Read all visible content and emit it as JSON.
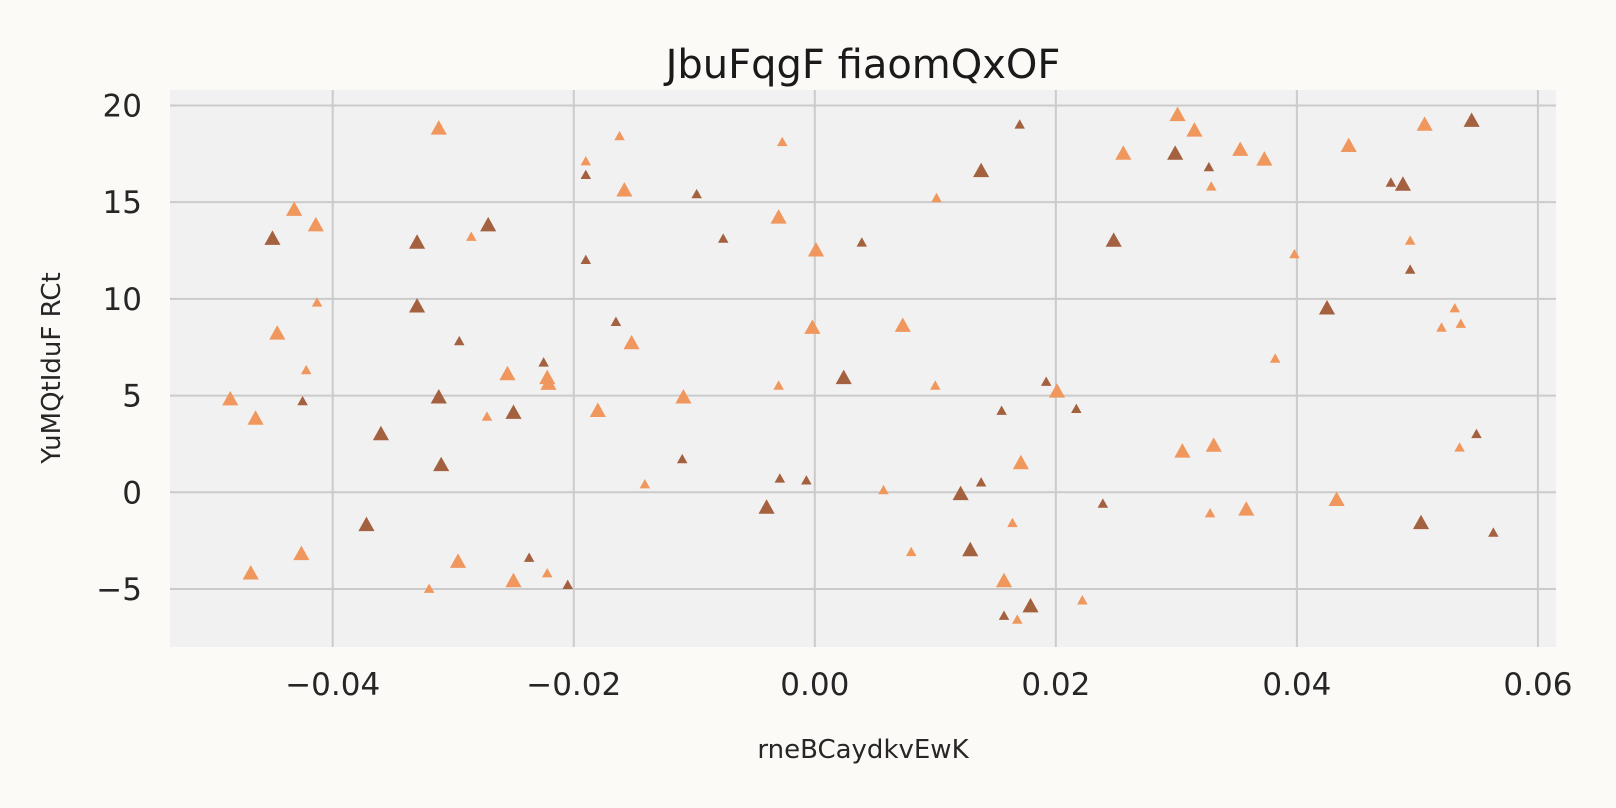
{
  "chart_data": {
    "type": "scatter",
    "title": "JbuFqgF fiaomQxOF",
    "xlabel": "rneBCaydkvEwK",
    "ylabel": "YuMQtIduF RCt",
    "xlim": [
      -0.0535,
      0.0615
    ],
    "ylim": [
      -8.0,
      20.8
    ],
    "xticks": [
      -0.04,
      -0.02,
      0.0,
      0.02,
      0.04,
      0.06
    ],
    "xtick_labels": [
      "−0.04",
      "−0.02",
      "0.00",
      "0.02",
      "0.04",
      "0.06"
    ],
    "yticks": [
      -5,
      0,
      5,
      10,
      15,
      20
    ],
    "ytick_labels": [
      "−5",
      "0",
      "5",
      "10",
      "15",
      "20"
    ],
    "grid": true,
    "marker": "triangle-up",
    "colors": {
      "background": "#f2f1f1",
      "orange": "#f0975e",
      "brown": "#a3613f"
    },
    "points": [
      {
        "x": -0.0485,
        "y": 4.8,
        "c": "orange",
        "s": 1.0
      },
      {
        "x": -0.0464,
        "y": 3.8,
        "c": "orange",
        "s": 1.0
      },
      {
        "x": -0.0468,
        "y": -4.2,
        "c": "orange",
        "s": 1.0
      },
      {
        "x": -0.0432,
        "y": 14.6,
        "c": "orange",
        "s": 1.0
      },
      {
        "x": -0.0446,
        "y": 8.2,
        "c": "orange",
        "s": 1.0
      },
      {
        "x": -0.0426,
        "y": -3.2,
        "c": "orange",
        "s": 1.0
      },
      {
        "x": -0.0414,
        "y": 13.8,
        "c": "orange",
        "s": 1.0
      },
      {
        "x": -0.0422,
        "y": 6.3,
        "c": "orange",
        "s": 0.65
      },
      {
        "x": -0.0413,
        "y": 9.8,
        "c": "orange",
        "s": 0.65
      },
      {
        "x": -0.045,
        "y": 13.1,
        "c": "brown",
        "s": 1.0
      },
      {
        "x": -0.0425,
        "y": 4.7,
        "c": "brown",
        "s": 0.65
      },
      {
        "x": -0.0372,
        "y": -1.7,
        "c": "brown",
        "s": 1.0
      },
      {
        "x": -0.036,
        "y": 3.0,
        "c": "brown",
        "s": 1.0
      },
      {
        "x": -0.033,
        "y": 12.9,
        "c": "brown",
        "s": 1.0
      },
      {
        "x": -0.033,
        "y": 9.6,
        "c": "brown",
        "s": 1.0
      },
      {
        "x": -0.0312,
        "y": 4.9,
        "c": "brown",
        "s": 1.0
      },
      {
        "x": -0.031,
        "y": 1.4,
        "c": "brown",
        "s": 1.0
      },
      {
        "x": -0.0312,
        "y": 18.8,
        "c": "orange",
        "s": 1.0
      },
      {
        "x": -0.032,
        "y": -5.0,
        "c": "orange",
        "s": 0.65
      },
      {
        "x": -0.0295,
        "y": 7.8,
        "c": "brown",
        "s": 0.65
      },
      {
        "x": -0.0285,
        "y": 13.2,
        "c": "orange",
        "s": 0.65
      },
      {
        "x": -0.0296,
        "y": -3.6,
        "c": "orange",
        "s": 1.0
      },
      {
        "x": -0.0271,
        "y": 13.8,
        "c": "brown",
        "s": 1.0
      },
      {
        "x": -0.0272,
        "y": 3.9,
        "c": "orange",
        "s": 0.65
      },
      {
        "x": -0.0255,
        "y": 6.1,
        "c": "orange",
        "s": 1.0
      },
      {
        "x": -0.025,
        "y": 4.1,
        "c": "brown",
        "s": 1.0
      },
      {
        "x": -0.025,
        "y": -4.6,
        "c": "orange",
        "s": 1.0
      },
      {
        "x": -0.0237,
        "y": -3.4,
        "c": "brown",
        "s": 0.65
      },
      {
        "x": -0.0225,
        "y": 6.7,
        "c": "brown",
        "s": 0.65
      },
      {
        "x": -0.0222,
        "y": 5.9,
        "c": "orange",
        "s": 1.0
      },
      {
        "x": -0.0221,
        "y": 5.6,
        "c": "orange",
        "s": 1.0
      },
      {
        "x": -0.0222,
        "y": -4.2,
        "c": "orange",
        "s": 0.65
      },
      {
        "x": -0.0205,
        "y": -4.8,
        "c": "brown",
        "s": 0.65
      },
      {
        "x": -0.019,
        "y": 17.1,
        "c": "orange",
        "s": 0.65
      },
      {
        "x": -0.019,
        "y": 16.4,
        "c": "brown",
        "s": 0.65
      },
      {
        "x": -0.019,
        "y": 12.0,
        "c": "brown",
        "s": 0.65
      },
      {
        "x": -0.018,
        "y": 4.2,
        "c": "orange",
        "s": 1.0
      },
      {
        "x": -0.0162,
        "y": 18.4,
        "c": "orange",
        "s": 0.65
      },
      {
        "x": -0.0158,
        "y": 15.6,
        "c": "orange",
        "s": 1.0
      },
      {
        "x": -0.0165,
        "y": 8.8,
        "c": "brown",
        "s": 0.65
      },
      {
        "x": -0.0152,
        "y": 7.7,
        "c": "orange",
        "s": 1.0
      },
      {
        "x": -0.0141,
        "y": 0.4,
        "c": "orange",
        "s": 0.65
      },
      {
        "x": -0.0109,
        "y": 4.9,
        "c": "orange",
        "s": 1.0
      },
      {
        "x": -0.011,
        "y": 1.7,
        "c": "brown",
        "s": 0.65
      },
      {
        "x": -0.0098,
        "y": 15.4,
        "c": "brown",
        "s": 0.65
      },
      {
        "x": -0.0076,
        "y": 13.1,
        "c": "brown",
        "s": 0.65
      },
      {
        "x": -0.004,
        "y": -0.8,
        "c": "brown",
        "s": 1.0
      },
      {
        "x": -0.003,
        "y": 14.2,
        "c": "orange",
        "s": 1.0
      },
      {
        "x": -0.0027,
        "y": 18.1,
        "c": "orange",
        "s": 0.65
      },
      {
        "x": -0.003,
        "y": 5.5,
        "c": "orange",
        "s": 0.65
      },
      {
        "x": -0.0029,
        "y": 0.7,
        "c": "brown",
        "s": 0.65
      },
      {
        "x": -0.0007,
        "y": 0.6,
        "c": "brown",
        "s": 0.65
      },
      {
        "x": -0.0002,
        "y": 8.5,
        "c": "orange",
        "s": 1.0
      },
      {
        "x": 0.0001,
        "y": 12.5,
        "c": "orange",
        "s": 1.0
      },
      {
        "x": 0.0024,
        "y": 5.9,
        "c": "brown",
        "s": 1.0
      },
      {
        "x": 0.0039,
        "y": 12.9,
        "c": "brown",
        "s": 0.65
      },
      {
        "x": 0.0057,
        "y": 0.1,
        "c": "orange",
        "s": 0.65
      },
      {
        "x": 0.0073,
        "y": 8.6,
        "c": "orange",
        "s": 1.0
      },
      {
        "x": 0.008,
        "y": -3.1,
        "c": "orange",
        "s": 0.65
      },
      {
        "x": 0.0101,
        "y": 15.2,
        "c": "orange",
        "s": 0.65
      },
      {
        "x": 0.01,
        "y": 5.5,
        "c": "orange",
        "s": 0.65
      },
      {
        "x": 0.0121,
        "y": -0.1,
        "c": "brown",
        "s": 1.0
      },
      {
        "x": 0.0129,
        "y": -3.0,
        "c": "brown",
        "s": 1.0
      },
      {
        "x": 0.0138,
        "y": 16.6,
        "c": "brown",
        "s": 1.0
      },
      {
        "x": 0.0138,
        "y": 0.5,
        "c": "brown",
        "s": 0.65
      },
      {
        "x": 0.0155,
        "y": 4.2,
        "c": "brown",
        "s": 0.65
      },
      {
        "x": 0.0157,
        "y": -4.6,
        "c": "orange",
        "s": 1.0
      },
      {
        "x": 0.0157,
        "y": -6.4,
        "c": "brown",
        "s": 0.65
      },
      {
        "x": 0.0164,
        "y": -1.6,
        "c": "orange",
        "s": 0.65
      },
      {
        "x": 0.0168,
        "y": -6.6,
        "c": "orange",
        "s": 0.65
      },
      {
        "x": 0.017,
        "y": 19.0,
        "c": "brown",
        "s": 0.65
      },
      {
        "x": 0.0171,
        "y": 1.5,
        "c": "orange",
        "s": 1.0
      },
      {
        "x": 0.0179,
        "y": -5.9,
        "c": "brown",
        "s": 1.0
      },
      {
        "x": 0.0192,
        "y": 5.7,
        "c": "brown",
        "s": 0.65
      },
      {
        "x": 0.0201,
        "y": 5.2,
        "c": "orange",
        "s": 1.0
      },
      {
        "x": 0.0217,
        "y": 4.3,
        "c": "brown",
        "s": 0.65
      },
      {
        "x": 0.0222,
        "y": -5.6,
        "c": "orange",
        "s": 0.65
      },
      {
        "x": 0.0239,
        "y": -0.6,
        "c": "brown",
        "s": 0.65
      },
      {
        "x": 0.0248,
        "y": 13.0,
        "c": "brown",
        "s": 1.0
      },
      {
        "x": 0.0256,
        "y": 17.5,
        "c": "orange",
        "s": 1.0
      },
      {
        "x": 0.0299,
        "y": 17.5,
        "c": "brown",
        "s": 1.0
      },
      {
        "x": 0.0301,
        "y": 19.5,
        "c": "orange",
        "s": 1.0
      },
      {
        "x": 0.0305,
        "y": 2.1,
        "c": "orange",
        "s": 1.0
      },
      {
        "x": 0.0315,
        "y": 18.7,
        "c": "orange",
        "s": 1.0
      },
      {
        "x": 0.0327,
        "y": 16.8,
        "c": "brown",
        "s": 0.65
      },
      {
        "x": 0.0329,
        "y": 15.8,
        "c": "orange",
        "s": 0.65
      },
      {
        "x": 0.0328,
        "y": -1.1,
        "c": "orange",
        "s": 0.65
      },
      {
        "x": 0.0331,
        "y": 2.4,
        "c": "orange",
        "s": 1.0
      },
      {
        "x": 0.0353,
        "y": 17.7,
        "c": "orange",
        "s": 1.0
      },
      {
        "x": 0.0358,
        "y": -0.9,
        "c": "orange",
        "s": 1.0
      },
      {
        "x": 0.0373,
        "y": 17.2,
        "c": "orange",
        "s": 1.0
      },
      {
        "x": 0.0382,
        "y": 6.9,
        "c": "orange",
        "s": 0.65
      },
      {
        "x": 0.0398,
        "y": 12.3,
        "c": "orange",
        "s": 0.65
      },
      {
        "x": 0.0425,
        "y": 9.5,
        "c": "brown",
        "s": 1.0
      },
      {
        "x": 0.0433,
        "y": -0.4,
        "c": "orange",
        "s": 1.0
      },
      {
        "x": 0.0443,
        "y": 17.9,
        "c": "orange",
        "s": 1.0
      },
      {
        "x": 0.0478,
        "y": 16.0,
        "c": "brown",
        "s": 0.65
      },
      {
        "x": 0.0488,
        "y": 15.9,
        "c": "brown",
        "s": 1.0
      },
      {
        "x": 0.0494,
        "y": 13.0,
        "c": "orange",
        "s": 0.65
      },
      {
        "x": 0.0494,
        "y": 11.5,
        "c": "brown",
        "s": 0.65
      },
      {
        "x": 0.0503,
        "y": -1.6,
        "c": "brown",
        "s": 1.0
      },
      {
        "x": 0.0506,
        "y": 19.0,
        "c": "orange",
        "s": 1.0
      },
      {
        "x": 0.052,
        "y": 8.5,
        "c": "orange",
        "s": 0.65
      },
      {
        "x": 0.0531,
        "y": 9.5,
        "c": "orange",
        "s": 0.65
      },
      {
        "x": 0.0536,
        "y": 8.7,
        "c": "orange",
        "s": 0.65
      },
      {
        "x": 0.0535,
        "y": 2.3,
        "c": "orange",
        "s": 0.65
      },
      {
        "x": 0.0545,
        "y": 19.2,
        "c": "brown",
        "s": 1.0
      },
      {
        "x": 0.0549,
        "y": 3.0,
        "c": "brown",
        "s": 0.65
      },
      {
        "x": 0.0563,
        "y": -2.1,
        "c": "brown",
        "s": 0.65
      }
    ]
  }
}
